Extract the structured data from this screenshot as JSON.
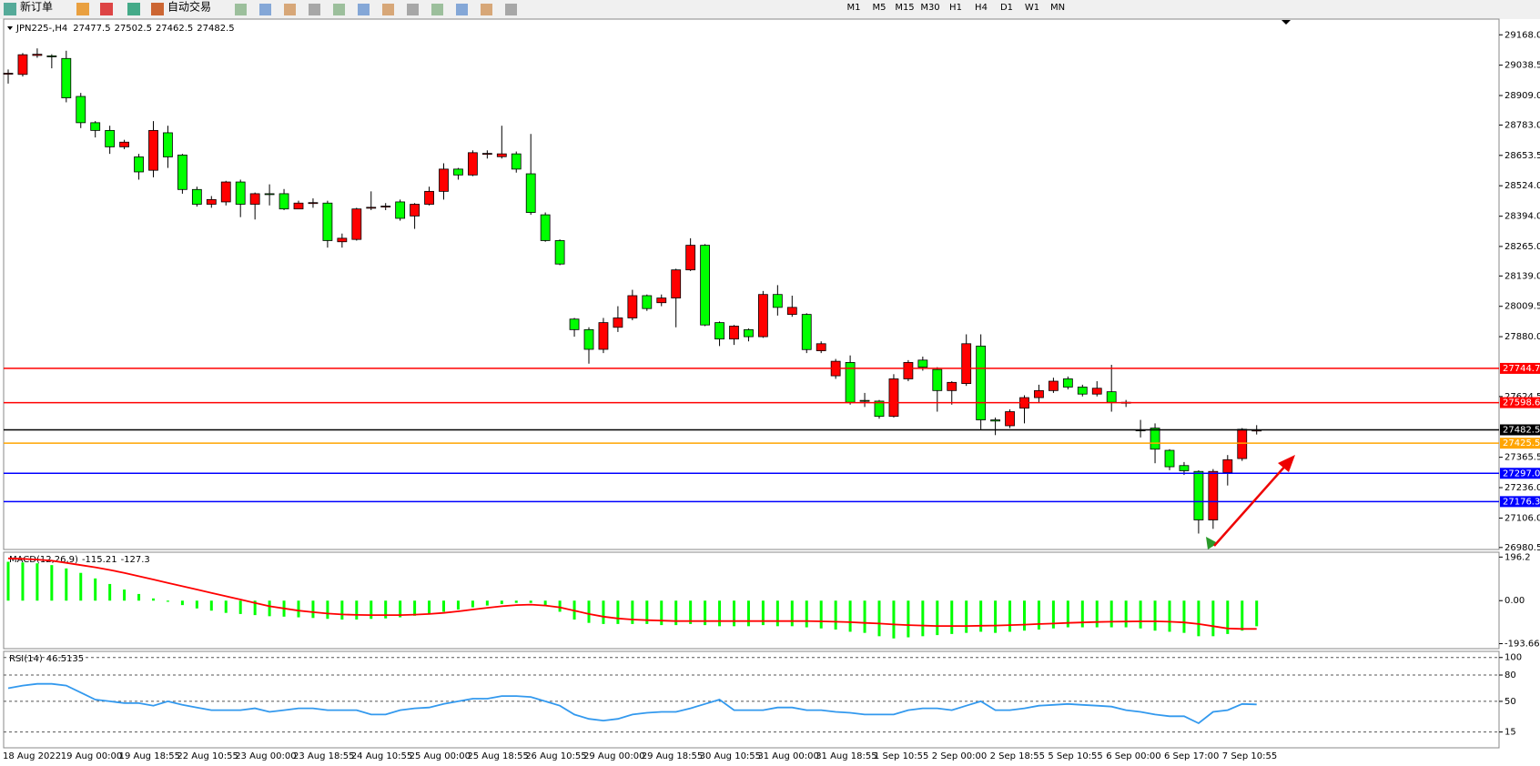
{
  "toolbar": {
    "new_order": "新订单",
    "auto_trading": "自动交易",
    "timeframes": [
      "M1",
      "M5",
      "M15",
      "M30",
      "H1",
      "H4",
      "D1",
      "W1",
      "MN"
    ]
  },
  "chart_data": [
    {
      "type": "candlestick",
      "symbol": "JPN225-,H4",
      "up_color": "#ff0000",
      "down_color": "#00ff00",
      "categories": [
        "18 Aug 2022",
        null,
        null,
        null,
        "19 Aug 00:00",
        null,
        null,
        null,
        "19 Aug 18:55",
        null,
        null,
        null,
        "22 Aug 10:55",
        null,
        null,
        null,
        "23 Aug 00:00",
        null,
        null,
        null,
        "23 Aug 18:55",
        null,
        null,
        null,
        "24 Aug 10:55",
        null,
        null,
        null,
        "25 Aug 00:00",
        null,
        null,
        null,
        "25 Aug 18:55",
        null,
        null,
        null,
        "26 Aug 10:55",
        null,
        null,
        null,
        "29 Aug 00:00",
        null,
        null,
        null,
        "29 Aug 18:55",
        null,
        null,
        null,
        "30 Aug 10:55",
        null,
        null,
        null,
        "31 Aug 00:00",
        null,
        null,
        null,
        "31 Aug 18:55",
        null,
        null,
        null,
        "1 Sep 10:55",
        null,
        null,
        null,
        "2 Sep 00:00",
        null,
        null,
        null,
        "2 Sep 18:55",
        null,
        null,
        null,
        "5 Sep 10:55",
        null,
        null,
        null,
        "6 Sep 00:00",
        null,
        null,
        null,
        "6 Sep 17:00",
        null,
        null,
        null,
        "7 Sep 10:55",
        null,
        null
      ],
      "open": [
        29000,
        28999,
        29080,
        29078,
        29067,
        28905,
        28793,
        28760,
        28690,
        28647,
        28590,
        28750,
        28655,
        28508,
        28445,
        28455,
        28540,
        28445,
        28490,
        28490,
        28425,
        28450,
        28450,
        28285,
        28295,
        28430,
        28435,
        28455,
        28395,
        28445,
        28500,
        28595,
        28570,
        28660,
        28648,
        28660,
        28575,
        28400,
        28290,
        27955,
        27910,
        27826,
        27920,
        27960,
        28055,
        28025,
        28045,
        28165,
        28270,
        27940,
        27870,
        27910,
        27880,
        28060,
        27975,
        27975,
        27820,
        27713,
        27770,
        27608,
        27605,
        27540,
        27700,
        27780,
        27740,
        27650,
        27680,
        27840,
        27525,
        27500,
        27575,
        27620,
        27650,
        27700,
        27665,
        27635,
        27645,
        27600,
        27482,
        27490,
        27395,
        27330,
        27305,
        27098,
        27300,
        27360,
        27477.5
      ],
      "high": [
        29020,
        29090,
        29110,
        29085,
        29100,
        28920,
        28800,
        28780,
        28720,
        28660,
        28800,
        28780,
        28660,
        28520,
        28480,
        28545,
        28550,
        28495,
        28530,
        28510,
        28460,
        28470,
        28460,
        28320,
        28430,
        28500,
        28450,
        28465,
        28450,
        28520,
        28620,
        28600,
        28675,
        28675,
        28780,
        28670,
        28745,
        28410,
        28295,
        27960,
        27920,
        27960,
        28010,
        28080,
        28060,
        28060,
        28170,
        28300,
        28275,
        27945,
        27930,
        27915,
        28075,
        28100,
        28055,
        27980,
        27860,
        27785,
        27800,
        27640,
        27610,
        27720,
        27780,
        27795,
        27750,
        27690,
        27890,
        27890,
        27535,
        27570,
        27630,
        27675,
        27705,
        27710,
        27675,
        27690,
        27760,
        27610,
        27525,
        27510,
        27400,
        27345,
        27310,
        27315,
        27375,
        27490,
        27502.5
      ],
      "low": [
        28960,
        28990,
        29070,
        29025,
        28880,
        28770,
        28730,
        28660,
        28680,
        28550,
        28560,
        28600,
        28490,
        28435,
        28430,
        28440,
        28390,
        28380,
        28440,
        28420,
        28430,
        28430,
        28260,
        28260,
        28290,
        28420,
        28420,
        28375,
        28340,
        28440,
        28465,
        28550,
        28565,
        28640,
        28640,
        28580,
        28400,
        28285,
        28185,
        27880,
        27765,
        27810,
        27900,
        27950,
        27990,
        28010,
        27920,
        28160,
        27925,
        27840,
        27845,
        27860,
        27875,
        27970,
        27965,
        27810,
        27810,
        27700,
        27590,
        27580,
        27530,
        27535,
        27690,
        27735,
        27560,
        27590,
        27670,
        27485,
        27460,
        27490,
        27510,
        27600,
        27640,
        27655,
        27625,
        27625,
        27560,
        27580,
        27450,
        27340,
        27310,
        27290,
        27040,
        27060,
        27245,
        27350,
        27462.5
      ],
      "close": [
        29004,
        29083,
        29085,
        29075,
        28899,
        28793,
        28760,
        28690,
        28710,
        28583,
        28760,
        28647,
        28508,
        28445,
        28465,
        28540,
        28445,
        28490,
        28488,
        28425,
        28450,
        28452,
        28290,
        28300,
        28425,
        28432,
        28437,
        28385,
        28445,
        28500,
        28595,
        28570,
        28665,
        28662,
        28660,
        28595,
        28410,
        28290,
        28190,
        27910,
        27826,
        27940,
        27960,
        28055,
        28000,
        28045,
        28165,
        28270,
        27930,
        27870,
        27925,
        27880,
        28060,
        28005,
        28005,
        27825,
        27850,
        27775,
        27600,
        27605,
        27540,
        27700,
        27770,
        27750,
        27650,
        27685,
        27850,
        27525,
        27520,
        27560,
        27620,
        27650,
        27690,
        27665,
        27635,
        27660,
        27600,
        27598,
        27480,
        27400,
        27325,
        27308,
        27098,
        27305,
        27355,
        27485,
        27482.5
      ],
      "ylim": [
        26972,
        29235
      ],
      "yticks": [
        {
          "value": 29168,
          "label": "29168.0"
        },
        29038.5,
        {
          "value": 28909,
          "label": "28909.0"
        },
        {
          "value": 28783,
          "label": "28783.0"
        },
        28653.5,
        {
          "value": 28524,
          "label": "28524.0"
        },
        {
          "value": 28394,
          "label": "28394.0"
        },
        {
          "value": 28265,
          "label": "28265.0"
        },
        {
          "value": 28139,
          "label": "28139.0"
        },
        28009.5,
        {
          "value": 27880,
          "label": "27880.0"
        },
        27624.5,
        27365.5,
        {
          "value": 27236,
          "label": "27236.0"
        },
        {
          "value": 27106,
          "label": "27106.0"
        },
        26980.5
      ],
      "levels": [
        {
          "value": 27744.7,
          "color": "#ff0000"
        },
        {
          "value": 27598.6,
          "color": "#ff0000"
        },
        {
          "value": 27482.5,
          "color": "#000000"
        },
        {
          "value": 27425.5,
          "color": "#ffa500"
        },
        {
          "value": {
            "value": 27297,
            "label": "27297.0"
          },
          "color": "#0000ff"
        },
        {
          "value": 27176.3,
          "color": "#0000ff"
        }
      ]
    },
    {
      "type": "macd",
      "title": "MACD(12,26,9)",
      "ylim": [
        -216,
        218
      ],
      "yticks": [
        196.2,
        {
          "value": 0,
          "label": "0.00"
        },
        -193.66
      ],
      "series": [
        {
          "color": "#00ff00",
          "values": [
            175,
            172,
            168,
            160,
            145,
            125,
            100,
            75,
            50,
            30,
            10,
            -5,
            -20,
            -35,
            -45,
            -55,
            -60,
            -65,
            -70,
            -72,
            -75,
            -78,
            -82,
            -85,
            -85,
            -82,
            -80,
            -75,
            -68,
            -60,
            -50,
            -40,
            -30,
            -22,
            -15,
            -10,
            -10,
            -25,
            -50,
            -85,
            -100,
            -105,
            -105,
            -105,
            -105,
            -110,
            -110,
            -105,
            -110,
            -115,
            -115,
            -115,
            -110,
            -115,
            -115,
            -120,
            -125,
            -130,
            -140,
            -145,
            -160,
            -170,
            -165,
            -160,
            -155,
            -150,
            -145,
            -140,
            -145,
            -140,
            -135,
            -130,
            -125,
            -120,
            -120,
            -120,
            -120,
            -120,
            -125,
            -135,
            -140,
            -145,
            -160,
            -160,
            -150,
            -135,
            -115.21
          ]
        },
        {
          "color": "#ff0000",
          "values": [
            190,
            188,
            185,
            180,
            170,
            160,
            150,
            138,
            125,
            110,
            95,
            80,
            65,
            50,
            35,
            20,
            5,
            -10,
            -25,
            -35,
            -45,
            -52,
            -58,
            -62,
            -64,
            -65,
            -65,
            -65,
            -63,
            -60,
            -55,
            -48,
            -40,
            -32,
            -25,
            -20,
            -18,
            -22,
            -30,
            -45,
            -60,
            -72,
            -80,
            -85,
            -88,
            -90,
            -92,
            -92,
            -92,
            -92,
            -92,
            -92,
            -92,
            -92,
            -92,
            -92,
            -93,
            -95,
            -97,
            -100,
            -103,
            -107,
            -110,
            -112,
            -114,
            -114,
            -114,
            -113,
            -112,
            -110,
            -108,
            -105,
            -103,
            -100,
            -98,
            -96,
            -95,
            -94,
            -93,
            -93,
            -95,
            -98,
            -105,
            -115,
            -125,
            -127,
            -127.3
          ]
        }
      ]
    },
    {
      "type": "line",
      "title": "RSI(14)",
      "ylim": [
        -3,
        107
      ],
      "yticks": [
        100,
        80,
        50,
        15
      ],
      "series": [
        {
          "color": "#3399ee",
          "values": [
            65,
            68,
            70,
            70,
            68,
            60,
            52,
            50,
            48,
            48,
            45,
            50,
            46,
            43,
            40,
            40,
            40,
            42,
            38,
            40,
            42,
            42,
            40,
            40,
            40,
            35,
            35,
            40,
            42,
            43,
            47,
            50,
            53,
            53,
            56,
            56,
            55,
            50,
            45,
            35,
            30,
            28,
            30,
            35,
            37,
            38,
            38,
            42,
            47,
            52,
            40,
            40,
            40,
            43,
            43,
            40,
            40,
            38,
            37,
            35,
            35,
            35,
            40,
            42,
            42,
            40,
            45,
            50,
            40,
            40,
            42,
            45,
            46,
            47,
            46,
            45,
            44,
            40,
            38,
            35,
            33,
            33,
            25,
            38,
            40,
            47,
            46.5135
          ]
        }
      ]
    }
  ]
}
